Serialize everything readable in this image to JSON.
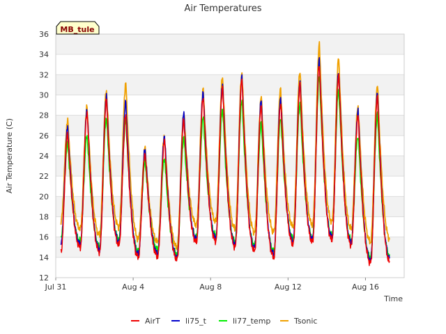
{
  "chart_data": {
    "type": "line",
    "title": "Air Temperatures",
    "xlabel": "Time",
    "ylabel": "Air Temperature (C)",
    "annotation": "MB_tule",
    "xlim": [
      0,
      18.0
    ],
    "ylim": [
      12,
      36
    ],
    "x_ticks": [
      {
        "x": 0,
        "label": "Jul 31"
      },
      {
        "x": 4,
        "label": "Aug 4"
      },
      {
        "x": 8,
        "label": "Aug 8"
      },
      {
        "x": 12,
        "label": "Aug 12"
      },
      {
        "x": 16,
        "label": "Aug 16"
      }
    ],
    "y_ticks": [
      12,
      14,
      16,
      18,
      20,
      22,
      24,
      26,
      28,
      30,
      32,
      34,
      36
    ],
    "grid": true,
    "legend_position": "bottom",
    "series_x_start": 0.25,
    "series_x_end": 17.25,
    "series": [
      {
        "name": "AirT",
        "color": "#ee0000",
        "line_width": 1.5,
        "daily_min": [
          14.5,
          15.0,
          14.5,
          15.2,
          14.0,
          14.1,
          13.8,
          15.5,
          15.6,
          15.0,
          14.6,
          14.0,
          15.3,
          15.5,
          15.7,
          15.2,
          13.4,
          13.5
        ],
        "daily_max": [
          26.2,
          28.3,
          29.5,
          28.0,
          24.3,
          25.5,
          27.5,
          29.8,
          30.8,
          31.5,
          29.0,
          29.2,
          31.0,
          33.0,
          32.0,
          28.0,
          29.8
        ]
      },
      {
        "name": "li75_t",
        "color": "#0000cc",
        "line_width": 1.5,
        "daily_min": [
          15.3,
          15.3,
          14.8,
          15.5,
          14.3,
          14.4,
          14.0,
          15.8,
          15.9,
          15.3,
          14.9,
          14.3,
          15.6,
          15.8,
          16.0,
          15.5,
          13.7,
          13.8
        ],
        "daily_max": [
          26.8,
          28.6,
          30.0,
          29.3,
          24.7,
          26.0,
          28.2,
          30.3,
          31.2,
          31.8,
          29.5,
          29.8,
          31.4,
          33.5,
          32.4,
          28.5,
          30.2
        ]
      },
      {
        "name": "li77_temp",
        "color": "#00ee00",
        "line_width": 1.5,
        "daily_min": [
          15.8,
          15.6,
          15.1,
          15.8,
          14.6,
          14.8,
          14.3,
          16.0,
          16.2,
          15.6,
          15.2,
          14.6,
          15.9,
          16.0,
          16.2,
          15.7,
          14.0,
          14.1
        ],
        "daily_max": [
          25.2,
          26.0,
          27.8,
          27.5,
          23.5,
          23.8,
          25.8,
          27.8,
          28.7,
          29.5,
          27.2,
          27.8,
          29.2,
          31.8,
          30.5,
          26.0,
          28.0
        ]
      },
      {
        "name": "Tsonic",
        "color": "#f0a000",
        "line_width": 1.8,
        "daily_min": [
          17.5,
          16.8,
          16.2,
          17.0,
          15.8,
          15.5,
          15.0,
          17.2,
          17.5,
          16.8,
          16.5,
          16.5,
          17.0,
          17.2,
          17.5,
          16.8,
          15.5,
          15.8
        ],
        "daily_max": [
          27.5,
          28.8,
          30.5,
          31.2,
          24.8,
          26.0,
          28.3,
          30.5,
          31.8,
          32.2,
          29.8,
          30.6,
          32.4,
          35.0,
          33.6,
          28.9,
          31.0
        ]
      }
    ]
  }
}
